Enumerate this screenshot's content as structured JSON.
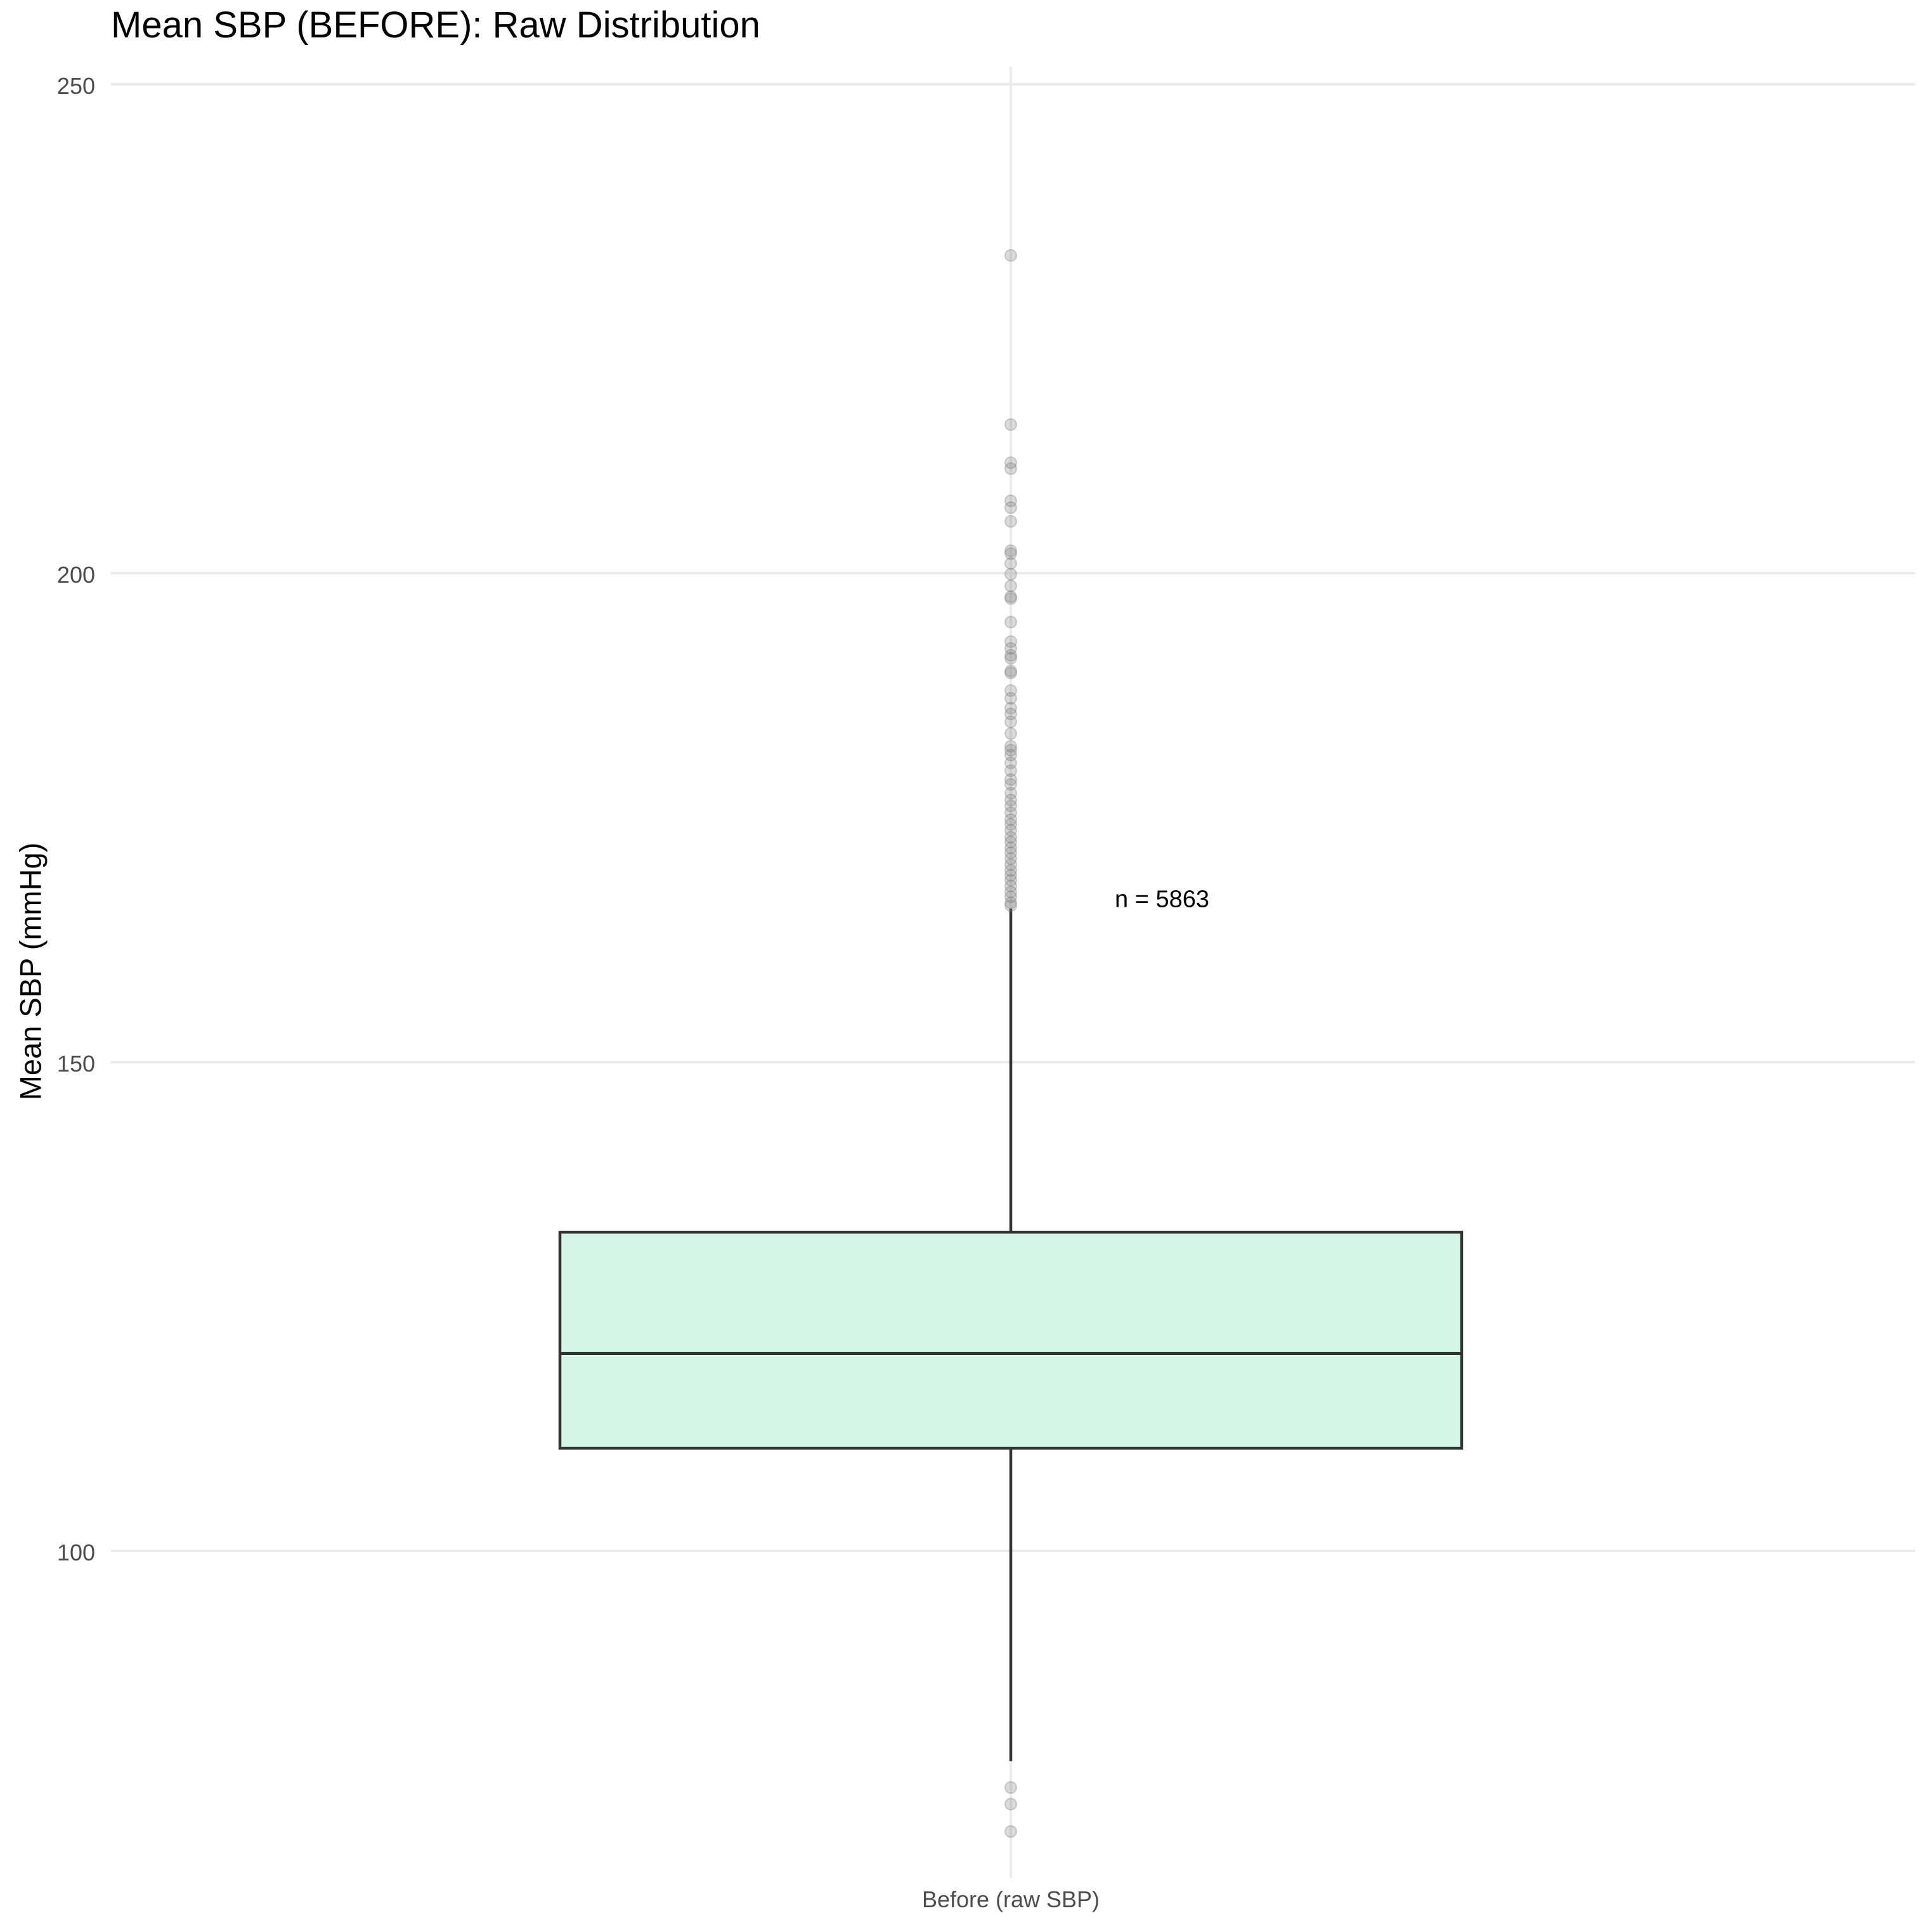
{
  "chart_data": {
    "type": "box",
    "title": "Mean SBP (BEFORE): Raw Distribution",
    "xlabel": "",
    "ylabel": "Mean SBP (mmHg)",
    "ylim": [
      69,
      252
    ],
    "yticks": [
      100,
      150,
      200,
      250
    ],
    "grid": true,
    "categories": [
      "Before (raw SBP)"
    ],
    "box": {
      "q1": 110.5,
      "median": 120.2,
      "q3": 132.6,
      "whisker_low": 78.5,
      "whisker_high": 165.7
    },
    "outliers": [
      232.5,
      215.2,
      211.3,
      210.7,
      207.4,
      206.7,
      205.3,
      202.3,
      202.0,
      201.0,
      199.9,
      198.7,
      197.6,
      197.4,
      195.0,
      193.0,
      192.3,
      191.6,
      191.3,
      190.0,
      189.8,
      188.0,
      187.2,
      186.2,
      185.6,
      184.8,
      183.6,
      182.3,
      181.9,
      181.4,
      180.6,
      179.8,
      178.9,
      178.4,
      177.5,
      176.8,
      176.2,
      175.5,
      174.8,
      174.3,
      173.7,
      173.0,
      172.5,
      171.9,
      171.4,
      170.8,
      170.2,
      169.6,
      169.1,
      168.6,
      168.0,
      167.4,
      166.9,
      166.3,
      166.0,
      75.8,
      74.1,
      71.3
    ],
    "annotation": "n = 5863",
    "colors": {
      "box_fill": "#d4f6e6",
      "box_stroke": "#333333",
      "outlier": "#7f7f7f",
      "grid": "#ebebeb",
      "tick_label": "#4d4d4d"
    }
  }
}
